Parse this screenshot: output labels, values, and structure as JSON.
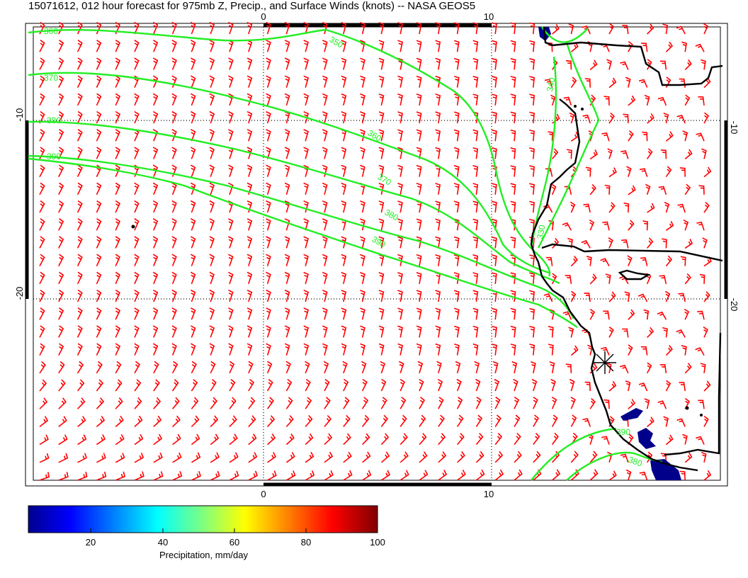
{
  "title": "15071612, 012 hour forecast for 975mb Z, Precip., and Surface Winds (knots) -- NASA GEOS5",
  "map": {
    "lon_ticks": [
      "0",
      "10"
    ],
    "lat_ticks": [
      "-10",
      "-20"
    ],
    "contour_labels": [
      "360",
      "370",
      "380",
      "390",
      "350",
      "360",
      "370",
      "380",
      "390",
      "340",
      "330",
      "390",
      "380"
    ],
    "colors": {
      "wind_barb": "#ff0000",
      "contour": "#22ee22",
      "coastline": "#000000",
      "precip": "#00008b"
    }
  },
  "colorbar": {
    "ticks": [
      "20",
      "40",
      "60",
      "80",
      "100"
    ],
    "label": "Precipitation, mm/day"
  }
}
